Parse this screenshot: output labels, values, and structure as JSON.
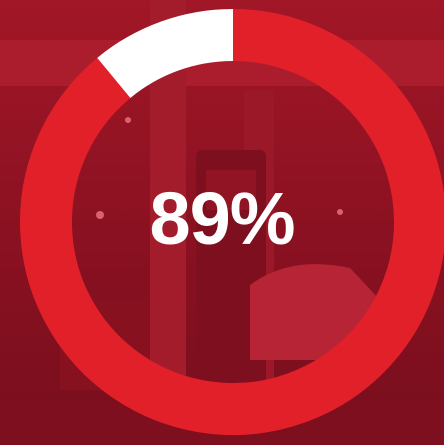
{
  "chart_data": {
    "type": "pie",
    "variant": "donut",
    "slices": [
      {
        "value": 89,
        "color": "#e2202a"
      },
      {
        "value": 11,
        "color": "#ffffff"
      }
    ],
    "center_label": "89%"
  },
  "background": {
    "description_color_tint": "#b8142a"
  }
}
